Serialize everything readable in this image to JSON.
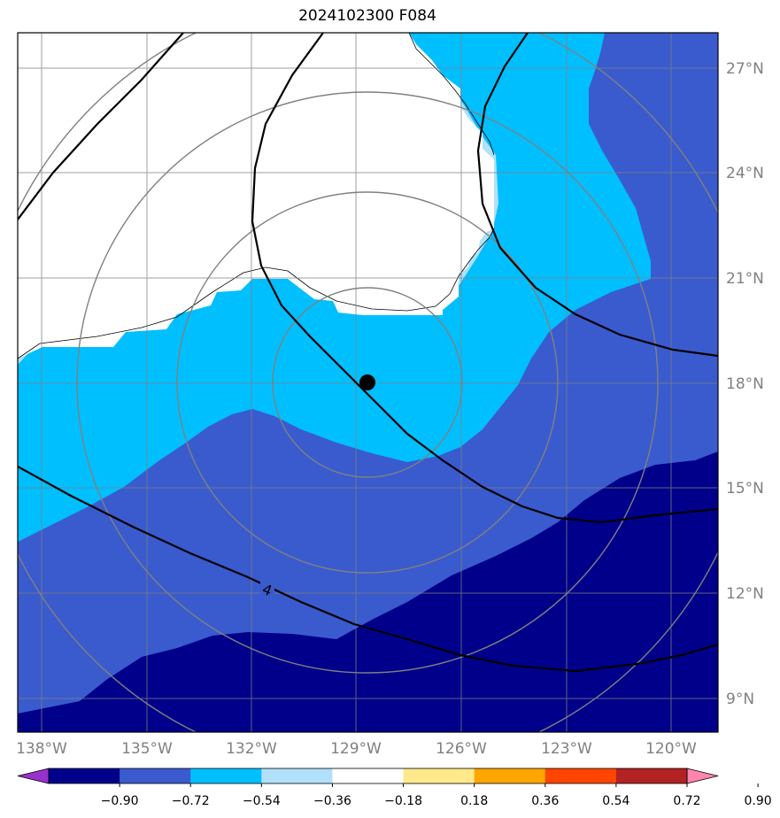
{
  "title": "2024102300 F084",
  "map": {
    "lon_labels": [
      "138°W",
      "135°W",
      "132°W",
      "129°W",
      "126°W",
      "123°W",
      "120°W"
    ],
    "lat_labels": [
      "27°N",
      "24°N",
      "21°N",
      "18°N",
      "15°N",
      "12°N",
      "9°N"
    ],
    "lon_range": [
      -138.6,
      -118.6
    ],
    "lat_range": [
      8,
      28
    ],
    "center": {
      "lon": -128.7,
      "lat": 18.1
    },
    "contour_label": "4",
    "range_rings_deg": [
      2.7,
      5.5,
      8.3,
      11.1
    ]
  },
  "colorbar": {
    "ticks": [
      "−0.90",
      "−0.72",
      "−0.54",
      "−0.36",
      "−0.18",
      "0.18",
      "0.36",
      "0.54",
      "0.72",
      "0.90"
    ],
    "colors": [
      "#9932cc",
      "#00008b",
      "#3a5bcd",
      "#00bfff",
      "#b0e0fa",
      "#ffffff",
      "#ffe98a",
      "#ffa500",
      "#ff4500",
      "#b22222",
      "#ff85ad"
    ]
  },
  "colors": {
    "very_dark": "#00008b",
    "dark": "#3a5bcd",
    "medium": "#00bfff",
    "light": "#b0e0fa",
    "neutral": "#ffffff",
    "grid": "#808080"
  }
}
